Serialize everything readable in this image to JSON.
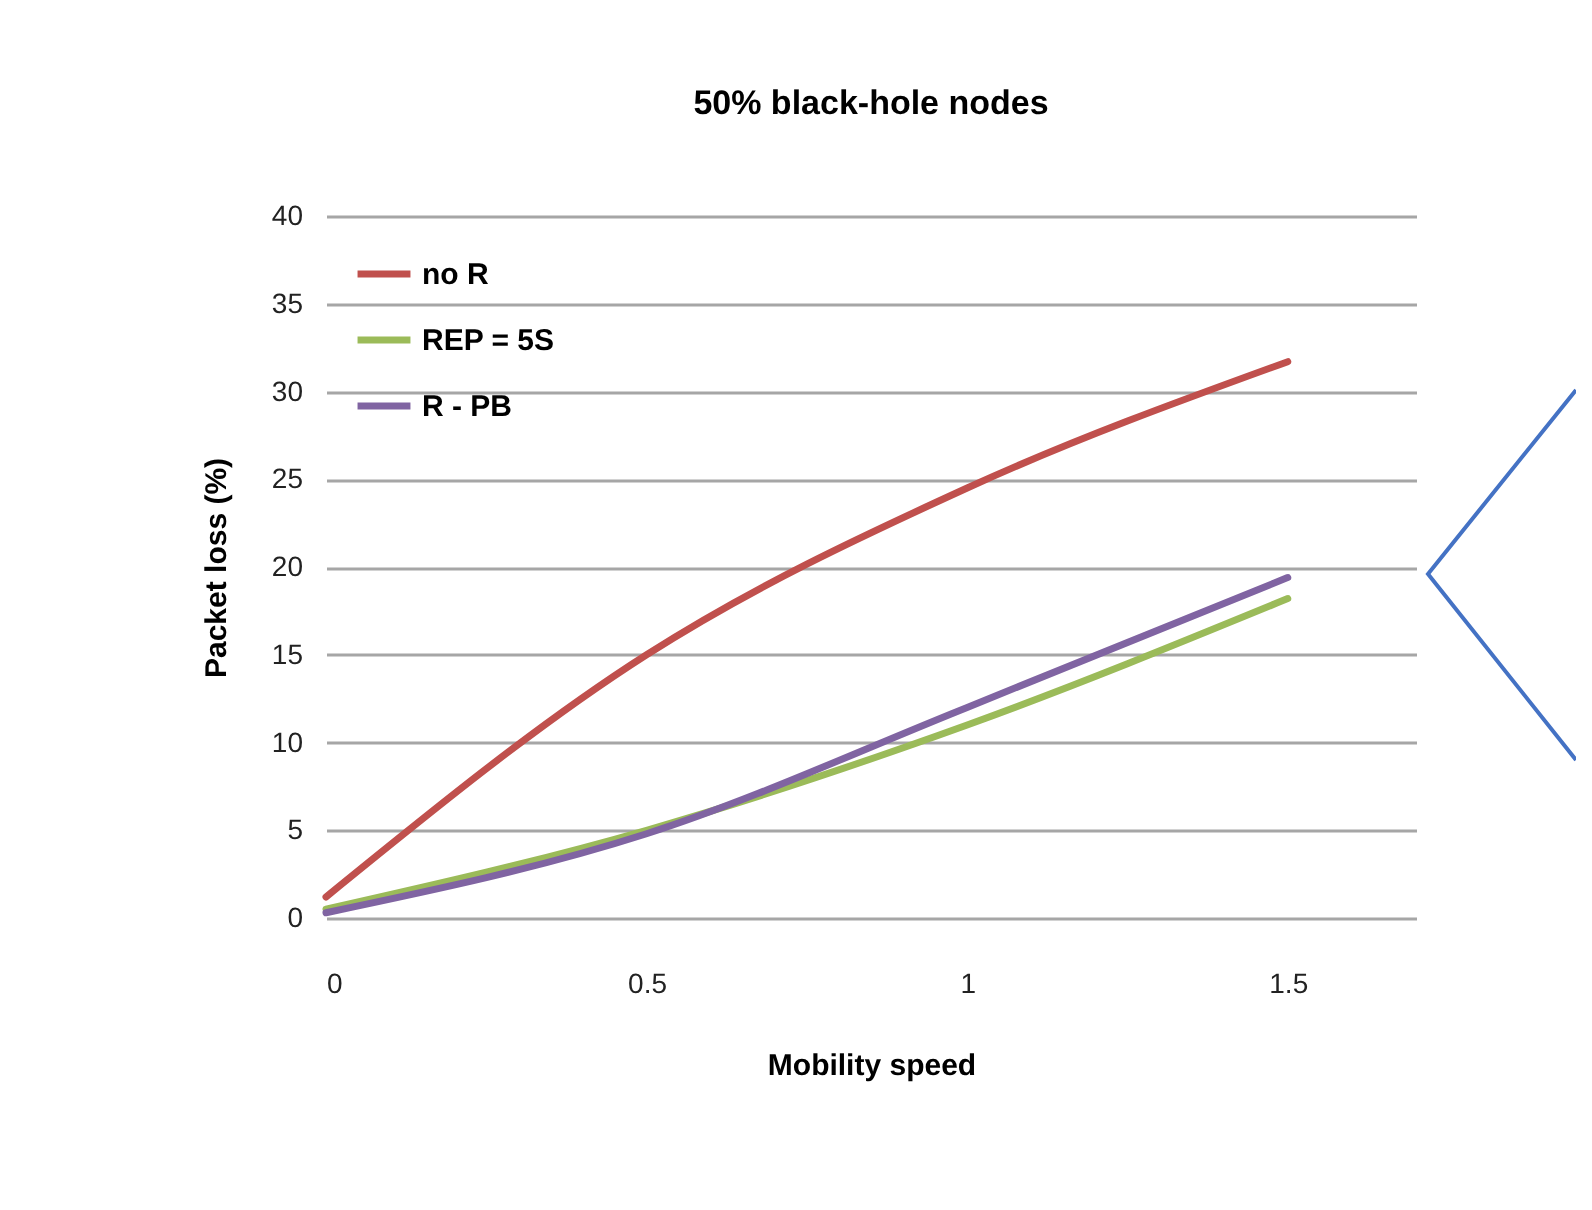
{
  "chart_data": {
    "type": "line",
    "title": "50% black-hole nodes",
    "xlabel": "Mobility speed",
    "ylabel": "Packet loss (%)",
    "x": [
      0,
      0.5,
      1,
      1.5
    ],
    "series": [
      {
        "name": "no R",
        "color": "#c0504d",
        "values": [
          1.2,
          15,
          24.5,
          31.7
        ]
      },
      {
        "name": "REP = 5S",
        "color": "#9bbb59",
        "values": [
          0.5,
          5,
          11,
          18.2
        ]
      },
      {
        "name": "R - PB",
        "color": "#8064a2",
        "values": [
          0.3,
          4.8,
          12,
          19.4
        ]
      }
    ],
    "xlim": [
      0,
      1.7
    ],
    "xticks": [
      0,
      0.5,
      1,
      1.5
    ],
    "ylim": [
      0,
      40
    ],
    "yticks": [
      0,
      5,
      10,
      15,
      20,
      25,
      30,
      35,
      40
    ],
    "grid": "y",
    "legend": "top left",
    "marker": "none",
    "line_style": "solid"
  }
}
